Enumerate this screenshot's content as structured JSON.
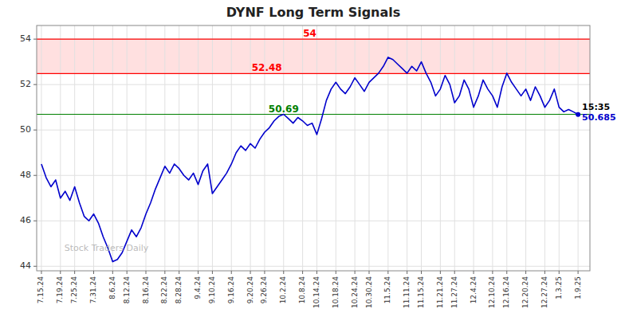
{
  "chart_data": {
    "type": "line",
    "title": "DYNF Long Term Signals",
    "categories": [
      "7.15.24",
      null,
      null,
      null,
      "7.19.24",
      null,
      null,
      "7.25.24",
      null,
      null,
      null,
      "7.31.24",
      null,
      null,
      null,
      "8.6.24",
      null,
      null,
      "8.12.24",
      null,
      null,
      null,
      "8.16.24",
      null,
      null,
      null,
      "8.22.24",
      null,
      null,
      "8.28.24",
      null,
      null,
      null,
      "9.4.24",
      null,
      null,
      "9.10.24",
      null,
      null,
      null,
      "9.16.24",
      null,
      null,
      null,
      "9.20.24",
      null,
      null,
      "9.26.24",
      null,
      null,
      null,
      "10.2.24",
      null,
      null,
      null,
      "10.8.24",
      null,
      null,
      "10.14.24",
      null,
      null,
      null,
      "10.18.24",
      null,
      null,
      null,
      "10.24.24",
      null,
      null,
      "10.30.24",
      null,
      null,
      null,
      "11.5.24",
      null,
      null,
      null,
      "11.11.24",
      null,
      null,
      "11.15.24",
      null,
      null,
      null,
      "11.21.24",
      null,
      null,
      "11.27.24",
      null,
      null,
      null,
      "12.4.24",
      null,
      null,
      null,
      "12.10.24",
      null,
      null,
      "12.16.24",
      null,
      null,
      null,
      "12.20.24",
      null,
      null,
      null,
      "12.27.24",
      null,
      null,
      "1.3.25",
      null,
      null,
      null,
      "1.9.25"
    ],
    "values": [
      48.5,
      47.9,
      47.5,
      47.8,
      47.0,
      47.3,
      46.9,
      47.5,
      46.8,
      46.2,
      46.0,
      46.3,
      45.9,
      45.3,
      44.8,
      44.2,
      44.3,
      44.6,
      45.1,
      45.6,
      45.3,
      45.7,
      46.3,
      46.8,
      47.4,
      47.9,
      48.4,
      48.1,
      48.5,
      48.3,
      48.0,
      47.8,
      48.1,
      47.6,
      48.2,
      48.5,
      47.2,
      47.5,
      47.8,
      48.1,
      48.5,
      49.0,
      49.3,
      49.1,
      49.4,
      49.2,
      49.6,
      49.9,
      50.1,
      50.4,
      50.6,
      50.69,
      50.5,
      50.3,
      50.55,
      50.4,
      50.2,
      50.3,
      49.8,
      50.5,
      51.3,
      51.8,
      52.1,
      51.8,
      51.6,
      51.9,
      52.3,
      52.0,
      51.7,
      52.1,
      52.3,
      52.5,
      52.8,
      53.2,
      53.1,
      52.9,
      52.7,
      52.5,
      52.8,
      52.6,
      53.0,
      52.5,
      52.1,
      51.5,
      51.8,
      52.4,
      52.0,
      51.2,
      51.5,
      52.2,
      51.8,
      51.0,
      51.5,
      52.2,
      51.8,
      51.5,
      51.0,
      51.9,
      52.5,
      52.1,
      51.8,
      51.5,
      51.8,
      51.3,
      51.9,
      51.5,
      51.0,
      51.3,
      51.8,
      51.0,
      50.8,
      50.9,
      50.8,
      50.685
    ],
    "color": "#0000cc",
    "ylim": [
      43.8,
      54.6
    ],
    "yticks": [
      44,
      46,
      48,
      50,
      52,
      54
    ],
    "grid": true,
    "reference_lines": [
      {
        "value": 54,
        "label": "54",
        "color": "red"
      },
      {
        "value": 52.48,
        "label": "52.48",
        "color": "red"
      },
      {
        "value": 50.69,
        "label": "50.69",
        "color": "green"
      }
    ],
    "band": {
      "from": 52.48,
      "to": 54,
      "color": "#ffcccc"
    },
    "annotation": "15:35",
    "watermark": "Stock Traders Daily"
  }
}
